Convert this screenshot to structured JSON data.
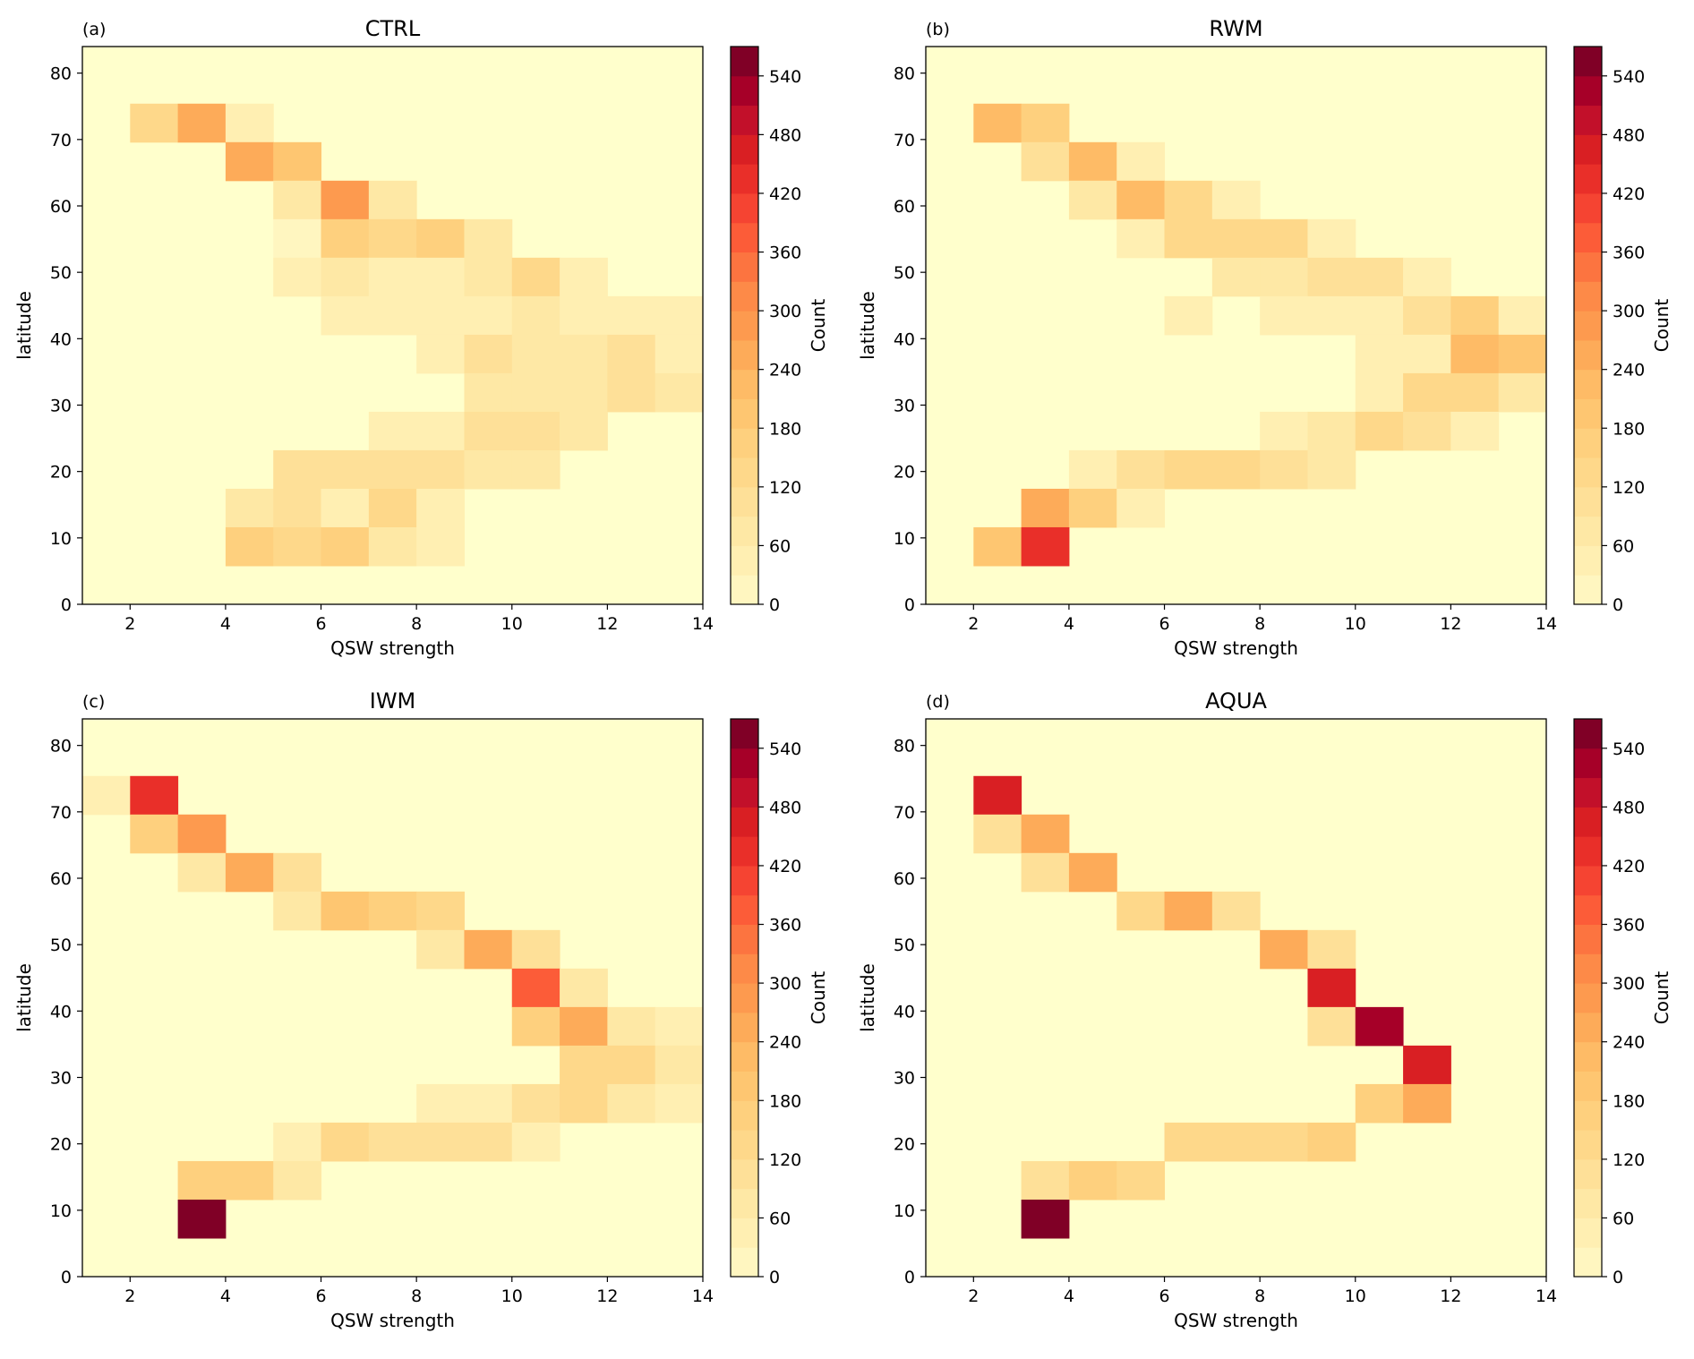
{
  "figure": {
    "x_axis_label": "QSW strength",
    "y_axis_label": "latitude",
    "colorbar_label": "Count",
    "colorbar_ticks": [
      0,
      60,
      120,
      180,
      240,
      300,
      360,
      420,
      480,
      540
    ],
    "x_ticks": [
      2,
      4,
      6,
      8,
      10,
      12,
      14
    ],
    "y_ticks": [
      0,
      10,
      20,
      30,
      40,
      50,
      60,
      70,
      80
    ]
  },
  "chart_data": [
    {
      "type": "heatmap",
      "panel_label": "(a)",
      "title": "CTRL",
      "xlabel": "QSW strength",
      "ylabel": "latitude",
      "colorbar_label": "Count",
      "xlim": [
        1,
        14
      ],
      "ylim": [
        0,
        84
      ],
      "vlim": [
        0,
        570
      ],
      "colormap": "YlOrRd",
      "x_bin_width": 1,
      "y_bin_height": 5.8,
      "cells": [
        {
          "x": 2,
          "y": 69.6,
          "v": 135
        },
        {
          "x": 3,
          "y": 69.6,
          "v": 245
        },
        {
          "x": 4,
          "y": 69.6,
          "v": 45
        },
        {
          "x": 4,
          "y": 63.8,
          "v": 245
        },
        {
          "x": 5,
          "y": 63.8,
          "v": 185
        },
        {
          "x": 5,
          "y": 58.0,
          "v": 70
        },
        {
          "x": 6,
          "y": 58.0,
          "v": 270
        },
        {
          "x": 7,
          "y": 58.0,
          "v": 65
        },
        {
          "x": 5,
          "y": 52.2,
          "v": 10
        },
        {
          "x": 6,
          "y": 52.2,
          "v": 155
        },
        {
          "x": 7,
          "y": 52.2,
          "v": 125
        },
        {
          "x": 8,
          "y": 52.2,
          "v": 150
        },
        {
          "x": 9,
          "y": 52.2,
          "v": 85
        },
        {
          "x": 5,
          "y": 46.4,
          "v": 40
        },
        {
          "x": 6,
          "y": 46.4,
          "v": 75
        },
        {
          "x": 7,
          "y": 46.4,
          "v": 40
        },
        {
          "x": 8,
          "y": 46.4,
          "v": 40
        },
        {
          "x": 9,
          "y": 46.4,
          "v": 75
        },
        {
          "x": 10,
          "y": 46.4,
          "v": 130
        },
        {
          "x": 11,
          "y": 46.4,
          "v": 35
        },
        {
          "x": 6,
          "y": 40.6,
          "v": 35
        },
        {
          "x": 7,
          "y": 40.6,
          "v": 35
        },
        {
          "x": 8,
          "y": 40.6,
          "v": 35
        },
        {
          "x": 9,
          "y": 40.6,
          "v": 35
        },
        {
          "x": 10,
          "y": 40.6,
          "v": 65
        },
        {
          "x": 11,
          "y": 40.6,
          "v": 40
        },
        {
          "x": 12,
          "y": 40.6,
          "v": 40
        },
        {
          "x": 13,
          "y": 40.6,
          "v": 40
        },
        {
          "x": 8,
          "y": 34.8,
          "v": 35
        },
        {
          "x": 9,
          "y": 34.8,
          "v": 95
        },
        {
          "x": 10,
          "y": 34.8,
          "v": 75
        },
        {
          "x": 11,
          "y": 34.8,
          "v": 75
        },
        {
          "x": 12,
          "y": 34.8,
          "v": 110
        },
        {
          "x": 13,
          "y": 34.8,
          "v": 45
        },
        {
          "x": 9,
          "y": 29.0,
          "v": 70
        },
        {
          "x": 10,
          "y": 29.0,
          "v": 70
        },
        {
          "x": 11,
          "y": 29.0,
          "v": 70
        },
        {
          "x": 12,
          "y": 29.0,
          "v": 110
        },
        {
          "x": 13,
          "y": 29.0,
          "v": 85
        },
        {
          "x": 7,
          "y": 23.2,
          "v": 45
        },
        {
          "x": 8,
          "y": 23.2,
          "v": 45
        },
        {
          "x": 9,
          "y": 23.2,
          "v": 95
        },
        {
          "x": 10,
          "y": 23.2,
          "v": 95
        },
        {
          "x": 11,
          "y": 23.2,
          "v": 70
        },
        {
          "x": 5,
          "y": 17.4,
          "v": 105
        },
        {
          "x": 6,
          "y": 17.4,
          "v": 105
        },
        {
          "x": 7,
          "y": 17.4,
          "v": 105
        },
        {
          "x": 8,
          "y": 17.4,
          "v": 105
        },
        {
          "x": 9,
          "y": 17.4,
          "v": 85
        },
        {
          "x": 10,
          "y": 17.4,
          "v": 85
        },
        {
          "x": 4,
          "y": 11.6,
          "v": 70
        },
        {
          "x": 5,
          "y": 11.6,
          "v": 105
        },
        {
          "x": 6,
          "y": 11.6,
          "v": 40
        },
        {
          "x": 7,
          "y": 11.6,
          "v": 135
        },
        {
          "x": 8,
          "y": 11.6,
          "v": 30
        },
        {
          "x": 4,
          "y": 5.8,
          "v": 155
        },
        {
          "x": 5,
          "y": 5.8,
          "v": 120
        },
        {
          "x": 6,
          "y": 5.8,
          "v": 150
        },
        {
          "x": 7,
          "y": 5.8,
          "v": 65
        },
        {
          "x": 8,
          "y": 5.8,
          "v": 35
        }
      ]
    },
    {
      "type": "heatmap",
      "panel_label": "(b)",
      "title": "RWM",
      "xlabel": "QSW strength",
      "ylabel": "latitude",
      "colorbar_label": "Count",
      "xlim": [
        1,
        14
      ],
      "ylim": [
        0,
        84
      ],
      "vlim": [
        0,
        570
      ],
      "colormap": "YlOrRd",
      "x_bin_width": 1,
      "y_bin_height": 5.8,
      "cells": [
        {
          "x": 2,
          "y": 69.6,
          "v": 235
        },
        {
          "x": 3,
          "y": 69.6,
          "v": 150
        },
        {
          "x": 3,
          "y": 63.8,
          "v": 90
        },
        {
          "x": 4,
          "y": 63.8,
          "v": 235
        },
        {
          "x": 5,
          "y": 63.8,
          "v": 55
        },
        {
          "x": 4,
          "y": 58.0,
          "v": 65
        },
        {
          "x": 5,
          "y": 58.0,
          "v": 220
        },
        {
          "x": 6,
          "y": 58.0,
          "v": 120
        },
        {
          "x": 7,
          "y": 58.0,
          "v": 35
        },
        {
          "x": 5,
          "y": 52.2,
          "v": 35
        },
        {
          "x": 6,
          "y": 52.2,
          "v": 140
        },
        {
          "x": 7,
          "y": 52.2,
          "v": 140
        },
        {
          "x": 8,
          "y": 52.2,
          "v": 120
        },
        {
          "x": 9,
          "y": 52.2,
          "v": 40
        },
        {
          "x": 7,
          "y": 46.4,
          "v": 70
        },
        {
          "x": 8,
          "y": 46.4,
          "v": 70
        },
        {
          "x": 9,
          "y": 46.4,
          "v": 95
        },
        {
          "x": 10,
          "y": 46.4,
          "v": 95
        },
        {
          "x": 11,
          "y": 46.4,
          "v": 35
        },
        {
          "x": 6,
          "y": 40.6,
          "v": 40
        },
        {
          "x": 8,
          "y": 40.6,
          "v": 40
        },
        {
          "x": 9,
          "y": 40.6,
          "v": 40
        },
        {
          "x": 10,
          "y": 40.6,
          "v": 40
        },
        {
          "x": 11,
          "y": 40.6,
          "v": 90
        },
        {
          "x": 12,
          "y": 40.6,
          "v": 175
        },
        {
          "x": 13,
          "y": 40.6,
          "v": 45
        },
        {
          "x": 10,
          "y": 34.8,
          "v": 35
        },
        {
          "x": 11,
          "y": 34.8,
          "v": 40
        },
        {
          "x": 12,
          "y": 34.8,
          "v": 225
        },
        {
          "x": 13,
          "y": 34.8,
          "v": 185
        },
        {
          "x": 10,
          "y": 29.0,
          "v": 45
        },
        {
          "x": 11,
          "y": 29.0,
          "v": 140
        },
        {
          "x": 12,
          "y": 29.0,
          "v": 140
        },
        {
          "x": 13,
          "y": 29.0,
          "v": 75
        },
        {
          "x": 8,
          "y": 23.2,
          "v": 40
        },
        {
          "x": 9,
          "y": 23.2,
          "v": 70
        },
        {
          "x": 10,
          "y": 23.2,
          "v": 135
        },
        {
          "x": 11,
          "y": 23.2,
          "v": 105
        },
        {
          "x": 12,
          "y": 23.2,
          "v": 40
        },
        {
          "x": 4,
          "y": 17.4,
          "v": 40
        },
        {
          "x": 5,
          "y": 17.4,
          "v": 100
        },
        {
          "x": 6,
          "y": 17.4,
          "v": 125
        },
        {
          "x": 7,
          "y": 17.4,
          "v": 125
        },
        {
          "x": 8,
          "y": 17.4,
          "v": 100
        },
        {
          "x": 9,
          "y": 17.4,
          "v": 70
        },
        {
          "x": 3,
          "y": 11.6,
          "v": 240
        },
        {
          "x": 4,
          "y": 11.6,
          "v": 170
        },
        {
          "x": 5,
          "y": 11.6,
          "v": 40
        },
        {
          "x": 2,
          "y": 5.8,
          "v": 185
        },
        {
          "x": 3,
          "y": 5.8,
          "v": 430
        }
      ]
    },
    {
      "type": "heatmap",
      "panel_label": "(c)",
      "title": "IWM",
      "xlabel": "QSW strength",
      "ylabel": "latitude",
      "colorbar_label": "Count",
      "xlim": [
        1,
        14
      ],
      "ylim": [
        0,
        84
      ],
      "vlim": [
        0,
        570
      ],
      "colormap": "YlOrRd",
      "x_bin_width": 1,
      "y_bin_height": 5.8,
      "cells": [
        {
          "x": 1,
          "y": 69.6,
          "v": 45
        },
        {
          "x": 2,
          "y": 69.6,
          "v": 430
        },
        {
          "x": 2,
          "y": 63.8,
          "v": 155
        },
        {
          "x": 3,
          "y": 63.8,
          "v": 270
        },
        {
          "x": 3,
          "y": 58.0,
          "v": 65
        },
        {
          "x": 4,
          "y": 58.0,
          "v": 250
        },
        {
          "x": 5,
          "y": 58.0,
          "v": 110
        },
        {
          "x": 5,
          "y": 52.2,
          "v": 70
        },
        {
          "x": 6,
          "y": 52.2,
          "v": 180
        },
        {
          "x": 7,
          "y": 52.2,
          "v": 165
        },
        {
          "x": 8,
          "y": 52.2,
          "v": 120
        },
        {
          "x": 8,
          "y": 46.4,
          "v": 75
        },
        {
          "x": 9,
          "y": 46.4,
          "v": 250
        },
        {
          "x": 10,
          "y": 46.4,
          "v": 100
        },
        {
          "x": 10,
          "y": 40.6,
          "v": 365
        },
        {
          "x": 11,
          "y": 40.6,
          "v": 60
        },
        {
          "x": 10,
          "y": 34.8,
          "v": 160
        },
        {
          "x": 11,
          "y": 34.8,
          "v": 265
        },
        {
          "x": 12,
          "y": 34.8,
          "v": 75
        },
        {
          "x": 13,
          "y": 34.8,
          "v": 45
        },
        {
          "x": 11,
          "y": 29.0,
          "v": 130
        },
        {
          "x": 12,
          "y": 29.0,
          "v": 130
        },
        {
          "x": 13,
          "y": 29.0,
          "v": 85
        },
        {
          "x": 8,
          "y": 23.2,
          "v": 40
        },
        {
          "x": 9,
          "y": 23.2,
          "v": 40
        },
        {
          "x": 10,
          "y": 23.2,
          "v": 115
        },
        {
          "x": 11,
          "y": 23.2,
          "v": 135
        },
        {
          "x": 12,
          "y": 23.2,
          "v": 75
        },
        {
          "x": 13,
          "y": 23.2,
          "v": 45
        },
        {
          "x": 5,
          "y": 17.4,
          "v": 45
        },
        {
          "x": 6,
          "y": 17.4,
          "v": 120
        },
        {
          "x": 7,
          "y": 17.4,
          "v": 100
        },
        {
          "x": 8,
          "y": 17.4,
          "v": 100
        },
        {
          "x": 9,
          "y": 17.4,
          "v": 100
        },
        {
          "x": 10,
          "y": 17.4,
          "v": 40
        },
        {
          "x": 3,
          "y": 11.6,
          "v": 160
        },
        {
          "x": 4,
          "y": 11.6,
          "v": 160
        },
        {
          "x": 5,
          "y": 11.6,
          "v": 75
        },
        {
          "x": 3,
          "y": 5.8,
          "v": 565
        }
      ]
    },
    {
      "type": "heatmap",
      "panel_label": "(d)",
      "title": "AQUA",
      "xlabel": "QSW strength",
      "ylabel": "latitude",
      "colorbar_label": "Count",
      "xlim": [
        1,
        14
      ],
      "ylim": [
        0,
        84
      ],
      "vlim": [
        0,
        570
      ],
      "colormap": "YlOrRd",
      "x_bin_width": 1,
      "y_bin_height": 5.8,
      "cells": [
        {
          "x": 2,
          "y": 69.6,
          "v": 465
        },
        {
          "x": 2,
          "y": 63.8,
          "v": 90
        },
        {
          "x": 3,
          "y": 63.8,
          "v": 250
        },
        {
          "x": 3,
          "y": 58.0,
          "v": 110
        },
        {
          "x": 4,
          "y": 58.0,
          "v": 255
        },
        {
          "x": 5,
          "y": 52.2,
          "v": 120
        },
        {
          "x": 6,
          "y": 52.2,
          "v": 265
        },
        {
          "x": 7,
          "y": 52.2,
          "v": 115
        },
        {
          "x": 8,
          "y": 46.4,
          "v": 250
        },
        {
          "x": 9,
          "y": 46.4,
          "v": 115
        },
        {
          "x": 9,
          "y": 40.6,
          "v": 460
        },
        {
          "x": 9,
          "y": 34.8,
          "v": 90
        },
        {
          "x": 10,
          "y": 34.8,
          "v": 520
        },
        {
          "x": 11,
          "y": 29.0,
          "v": 460
        },
        {
          "x": 10,
          "y": 23.2,
          "v": 150
        },
        {
          "x": 11,
          "y": 23.2,
          "v": 255
        },
        {
          "x": 6,
          "y": 17.4,
          "v": 125
        },
        {
          "x": 7,
          "y": 17.4,
          "v": 125
        },
        {
          "x": 8,
          "y": 17.4,
          "v": 125
        },
        {
          "x": 9,
          "y": 17.4,
          "v": 160
        },
        {
          "x": 3,
          "y": 11.6,
          "v": 110
        },
        {
          "x": 4,
          "y": 11.6,
          "v": 160
        },
        {
          "x": 5,
          "y": 11.6,
          "v": 130
        },
        {
          "x": 3,
          "y": 5.8,
          "v": 565
        }
      ]
    }
  ]
}
